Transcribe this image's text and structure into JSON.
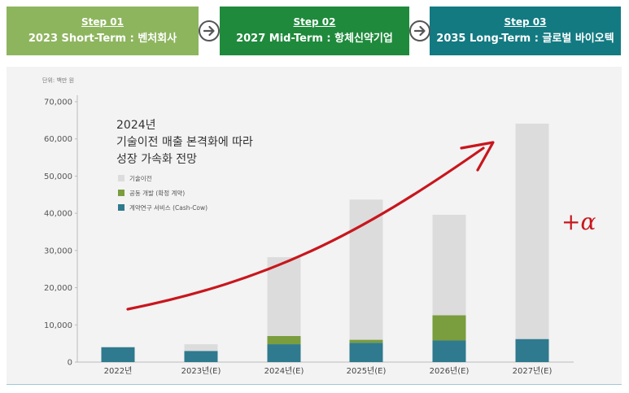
{
  "steps": [
    {
      "label": "Step 01",
      "title": "2023 Short-Term : 벤처회사"
    },
    {
      "label": "Step 02",
      "title": "2027 Mid-Term : 항체신약기업"
    },
    {
      "label": "Step 03",
      "title": "2035 Long-Term : 글로벌 바이오텍"
    }
  ],
  "colors": {
    "step1": "#8db55e",
    "step2": "#1f8a3c",
    "step3": "#137a82",
    "tech_transfer": "#dcdcdc",
    "co_development": "#7a9d3e",
    "contract_research": "#2f7a8e",
    "trend_arrow": "#c8161d",
    "alpha": "#c8161d"
  },
  "icons": {
    "step_arrow": "circle-arrow-right-icon"
  },
  "chart_data": {
    "type": "bar",
    "stacked": true,
    "unit_label": "단위: 백만 원",
    "categories": [
      "2022년",
      "2023년(E)",
      "2024년(E)",
      "2025년(E)",
      "2026년(E)",
      "2027년(E)"
    ],
    "series": [
      {
        "name": "계약연구 서비스 (Cash-Cow)",
        "color_key": "contract_research",
        "values": [
          4000,
          3000,
          4800,
          5200,
          5800,
          6200
        ]
      },
      {
        "name": "공동 개발 (확정 계약)",
        "color_key": "co_development",
        "values": [
          0,
          0,
          2200,
          800,
          6800,
          0
        ]
      },
      {
        "name": "기술이전",
        "color_key": "tech_transfer",
        "values": [
          0,
          1800,
          21200,
          37700,
          27000,
          57900
        ]
      }
    ],
    "legend_order": [
      2,
      1,
      0
    ],
    "ylim": [
      0,
      70000
    ],
    "yticks": [
      0,
      10000,
      20000,
      30000,
      40000,
      50000,
      60000,
      70000
    ],
    "ytick_labels": [
      "0",
      "10,000",
      "20,000",
      "30,000",
      "40,000",
      "50,000",
      "60,000",
      "70,000"
    ],
    "annotation_lines": [
      "2024년",
      "기술이전 매출 본격화에 따라",
      "성장 가속화 전망"
    ],
    "alpha_label": "+α",
    "legend_position": "upper-left",
    "grid": false
  }
}
